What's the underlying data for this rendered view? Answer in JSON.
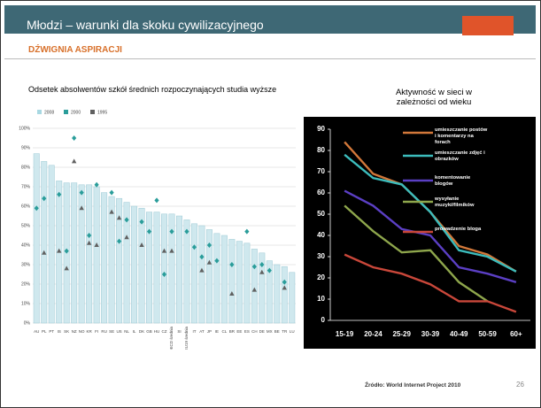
{
  "header": {
    "title": "Młodzi – warunki dla skoku cywilizacyjnego",
    "subtitle": "DŹWIGNIA ASPIRACJI"
  },
  "chart_data": [
    {
      "type": "bar",
      "title": "Odsetek absolwentów szkół średnich rozpoczynających studia wyższe",
      "categories": [
        "AU",
        "PL",
        "PT",
        "IS",
        "SK",
        "NZ",
        "NO",
        "KR",
        "FI",
        "RU",
        "SE",
        "US",
        "NL",
        "IL",
        "DK",
        "GB",
        "HU",
        "CZ",
        "OECD średnia",
        "SI",
        "EU19 średnia",
        "IT",
        "AT",
        "JP",
        "IE",
        "CL",
        "BR",
        "EE",
        "ES",
        "CH",
        "DE",
        "MX",
        "BE",
        "TR",
        "LU"
      ],
      "series": [
        {
          "name": "2008",
          "color": "#cfe8ee",
          "marker": "bar",
          "values": [
            87,
            83,
            81,
            73,
            72,
            72,
            71,
            71,
            70,
            67,
            65,
            64,
            62,
            60,
            59,
            57,
            57,
            56,
            56,
            55,
            53,
            51,
            50,
            48,
            46,
            45,
            43,
            42,
            41,
            38,
            36,
            32,
            30,
            29,
            26
          ]
        },
        {
          "name": "2000",
          "color": "#2a9d9a",
          "marker": "diamond",
          "values": [
            59,
            64,
            null,
            66,
            37,
            95,
            67,
            45,
            71,
            null,
            67,
            42,
            53,
            null,
            52,
            47,
            63,
            25,
            47,
            null,
            47,
            39,
            34,
            40,
            32,
            null,
            30,
            null,
            47,
            29,
            30,
            27,
            null,
            21,
            null
          ]
        },
        {
          "name": "1995",
          "color": "#606060",
          "marker": "triangle",
          "values": [
            null,
            36,
            null,
            37,
            28,
            83,
            59,
            41,
            40,
            null,
            57,
            54,
            44,
            null,
            40,
            null,
            null,
            37,
            37,
            null,
            null,
            null,
            27,
            31,
            null,
            null,
            15,
            null,
            null,
            17,
            26,
            null,
            null,
            18,
            null
          ]
        }
      ],
      "ylim": [
        0,
        100
      ],
      "yticks": [
        {
          "value": 0,
          "label": "0%"
        },
        {
          "value": 10,
          "label": "10%"
        },
        {
          "value": 20,
          "label": "20%"
        },
        {
          "value": 30,
          "label": "30%"
        },
        {
          "value": 40,
          "label": "40%"
        },
        {
          "value": 50,
          "label": "50%"
        },
        {
          "value": 60,
          "label": "60%"
        },
        {
          "value": 70,
          "label": "70%"
        },
        {
          "value": 80,
          "label": "80%"
        },
        {
          "value": 90,
          "label": "90%"
        },
        {
          "value": 100,
          "label": "100%"
        }
      ],
      "grid": true
    },
    {
      "type": "line",
      "title": "Aktywność w sieci w zależności od wieku",
      "categories": [
        "15-19",
        "20-24",
        "25-29",
        "30-39",
        "40-49",
        "50-59",
        "60+"
      ],
      "series": [
        {
          "name": "umieszczanie postów i komentarzy na forach",
          "color": "#d2783a",
          "values": [
            84,
            69,
            64,
            51,
            35,
            31,
            23
          ]
        },
        {
          "name": "umieszczanie zdjęć i obrazków",
          "color": "#3cbcbc",
          "values": [
            78,
            67,
            64,
            51,
            33,
            30,
            23
          ]
        },
        {
          "name": "komentowanie blogów",
          "color": "#5b3fc4",
          "values": [
            61,
            54,
            43,
            40,
            25,
            22,
            18
          ]
        },
        {
          "name": "wysyłanie muzyki/filmików",
          "color": "#8ea64c",
          "values": [
            54,
            42,
            32,
            33,
            18,
            9,
            null
          ]
        },
        {
          "name": "prowadzenie bloga",
          "color": "#c9473a",
          "values": [
            31,
            25,
            22,
            17,
            9,
            9,
            4
          ]
        }
      ],
      "ylim": [
        0,
        90
      ],
      "yticks": [
        0,
        10,
        20,
        30,
        40,
        50,
        60,
        70,
        80,
        90
      ],
      "grid": false,
      "background": "#000000"
    }
  ],
  "footer": {
    "source": "Źródło: World Internet Project 2010",
    "page": "26"
  }
}
